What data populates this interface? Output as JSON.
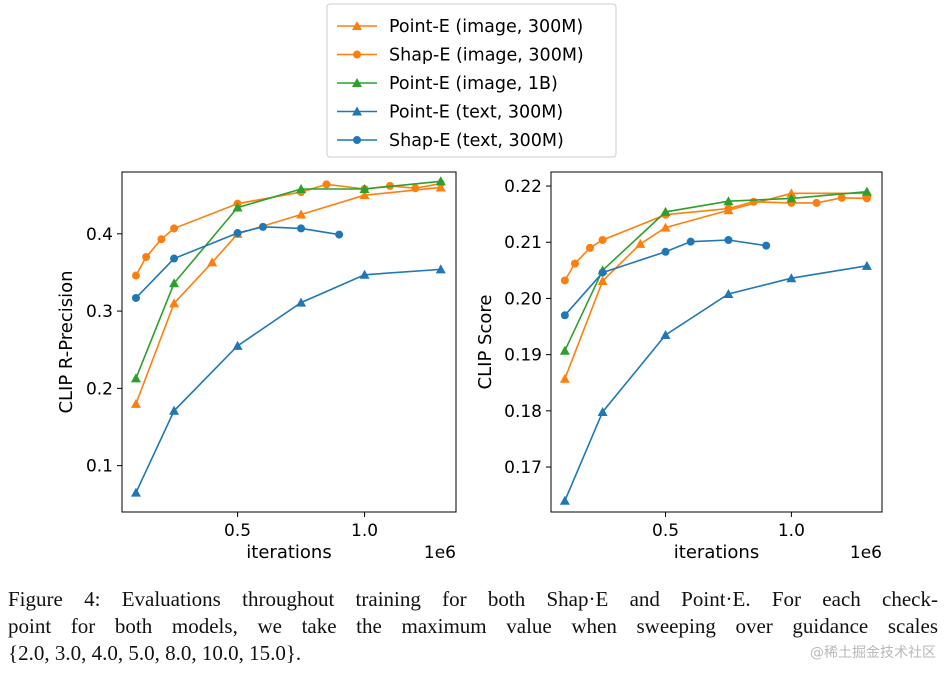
{
  "legend": {
    "position": "top-center",
    "entries": [
      {
        "label": "Point-E (image, 300M)",
        "color": "#ff7f0e",
        "marker": "triangle"
      },
      {
        "label": "Shap-E (image, 300M)",
        "color": "#ff7f0e",
        "marker": "circle"
      },
      {
        "label": "Point-E (image, 1B)",
        "color": "#2ca02c",
        "marker": "triangle"
      },
      {
        "label": "Point-E (text, 300M)",
        "color": "#1f77b4",
        "marker": "triangle"
      },
      {
        "label": "Shap-E (text, 300M)",
        "color": "#1f77b4",
        "marker": "circle"
      }
    ]
  },
  "chart_data": [
    {
      "type": "line",
      "title": "",
      "xlabel": "iterations",
      "x_offset_label": "1e6",
      "ylabel": "CLIP R-Precision",
      "xlim": [
        0.045,
        1.36
      ],
      "ylim": [
        0.04,
        0.48
      ],
      "xticks": [
        {
          "value": 0.5,
          "label": "0.5"
        },
        {
          "value": 1.0,
          "label": "1.0"
        }
      ],
      "yticks": [
        {
          "value": 0.1,
          "label": "0.1"
        },
        {
          "value": 0.2,
          "label": "0.2"
        },
        {
          "value": 0.3,
          "label": "0.3"
        },
        {
          "value": 0.4,
          "label": "0.4"
        }
      ],
      "grid": false,
      "series": [
        {
          "name": "Point-E (image, 300M)",
          "color": "#ff7f0e",
          "marker": "triangle",
          "x": [
            0.1,
            0.25,
            0.4,
            0.5,
            0.75,
            1.0,
            1.3
          ],
          "y": [
            0.18,
            0.31,
            0.363,
            0.4,
            0.425,
            0.45,
            0.46
          ]
        },
        {
          "name": "Shap-E (image, 300M)",
          "color": "#ff7f0e",
          "marker": "circle",
          "x": [
            0.1,
            0.14,
            0.2,
            0.25,
            0.5,
            0.75,
            0.85,
            1.0,
            1.1,
            1.2,
            1.3
          ],
          "y": [
            0.346,
            0.37,
            0.393,
            0.407,
            0.439,
            0.454,
            0.464,
            0.458,
            0.462,
            0.459,
            0.465
          ]
        },
        {
          "name": "Point-E (image, 1B)",
          "color": "#2ca02c",
          "marker": "triangle",
          "x": [
            0.1,
            0.25,
            0.5,
            0.75,
            1.0,
            1.3
          ],
          "y": [
            0.213,
            0.336,
            0.434,
            0.458,
            0.458,
            0.468
          ]
        },
        {
          "name": "Point-E (text, 300M)",
          "color": "#1f77b4",
          "marker": "triangle",
          "x": [
            0.1,
            0.25,
            0.5,
            0.75,
            1.0,
            1.3
          ],
          "y": [
            0.065,
            0.171,
            0.255,
            0.311,
            0.347,
            0.354
          ]
        },
        {
          "name": "Shap-E (text, 300M)",
          "color": "#1f77b4",
          "marker": "circle",
          "x": [
            0.1,
            0.25,
            0.5,
            0.6,
            0.75,
            0.9
          ],
          "y": [
            0.317,
            0.368,
            0.401,
            0.409,
            0.407,
            0.399
          ]
        }
      ]
    },
    {
      "type": "line",
      "title": "",
      "xlabel": "iterations",
      "x_offset_label": "1e6",
      "ylabel": "CLIP Score",
      "xlim": [
        0.045,
        1.36
      ],
      "ylim": [
        0.162,
        0.2225
      ],
      "xticks": [
        {
          "value": 0.5,
          "label": "0.5"
        },
        {
          "value": 1.0,
          "label": "1.0"
        }
      ],
      "yticks": [
        {
          "value": 0.17,
          "label": "0.17"
        },
        {
          "value": 0.18,
          "label": "0.18"
        },
        {
          "value": 0.19,
          "label": "0.19"
        },
        {
          "value": 0.2,
          "label": "0.20"
        },
        {
          "value": 0.21,
          "label": "0.21"
        },
        {
          "value": 0.22,
          "label": "0.22"
        }
      ],
      "grid": false,
      "series": [
        {
          "name": "Point-E (image, 300M)",
          "color": "#ff7f0e",
          "marker": "triangle",
          "x": [
            0.1,
            0.25,
            0.4,
            0.5,
            0.75,
            1.0,
            1.3
          ],
          "y": [
            0.1857,
            0.2031,
            0.2097,
            0.2126,
            0.2157,
            0.2187,
            0.2187
          ]
        },
        {
          "name": "Shap-E (image, 300M)",
          "color": "#ff7f0e",
          "marker": "circle",
          "x": [
            0.1,
            0.14,
            0.2,
            0.25,
            0.5,
            0.75,
            0.85,
            1.0,
            1.1,
            1.2,
            1.3
          ],
          "y": [
            0.2032,
            0.2062,
            0.209,
            0.2104,
            0.2149,
            0.216,
            0.2172,
            0.217,
            0.217,
            0.2179,
            0.2178
          ]
        },
        {
          "name": "Point-E (image, 1B)",
          "color": "#2ca02c",
          "marker": "triangle",
          "x": [
            0.1,
            0.25,
            0.5,
            0.75,
            1.0,
            1.3
          ],
          "y": [
            0.1907,
            0.205,
            0.2154,
            0.2173,
            0.2178,
            0.219
          ]
        },
        {
          "name": "Point-E (text, 300M)",
          "color": "#1f77b4",
          "marker": "triangle",
          "x": [
            0.1,
            0.25,
            0.5,
            0.75,
            1.0,
            1.3
          ],
          "y": [
            0.164,
            0.1798,
            0.1935,
            0.2008,
            0.2036,
            0.2058
          ]
        },
        {
          "name": "Shap-E (text, 300M)",
          "color": "#1f77b4",
          "marker": "circle",
          "x": [
            0.1,
            0.25,
            0.5,
            0.6,
            0.75,
            0.9
          ],
          "y": [
            0.197,
            0.2046,
            0.2083,
            0.2101,
            0.2104,
            0.2094
          ]
        }
      ]
    }
  ],
  "caption": {
    "line1": "Figure 4:  Evaluations throughout training for both Shap·E and Point·E. For each check-",
    "line2": "point for both models, we take the maximum value when sweeping over guidance scales",
    "line3": "{2.0, 3.0, 4.0, 5.0, 8.0, 10.0, 15.0}."
  },
  "watermark": "@稀土掘金技术社区"
}
